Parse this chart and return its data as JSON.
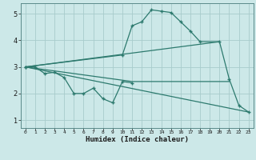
{
  "xlabel": "Humidex (Indice chaleur)",
  "bg_color": "#cce8e8",
  "grid_color": "#a8cccc",
  "line_color": "#2d7a6e",
  "xlim": [
    -0.5,
    23.5
  ],
  "ylim": [
    0.7,
    5.4
  ],
  "line1_x": [
    0,
    1,
    2,
    3,
    4,
    5,
    6,
    7,
    8,
    9,
    10,
    11
  ],
  "line1_y": [
    3.0,
    3.0,
    2.75,
    2.8,
    2.6,
    2.0,
    2.0,
    2.2,
    1.8,
    1.65,
    2.45,
    2.4
  ],
  "line2_x": [
    0,
    10,
    11,
    12,
    13,
    14,
    15,
    16,
    17,
    18,
    20,
    21,
    22,
    23
  ],
  "line2_y": [
    3.0,
    3.45,
    4.55,
    4.7,
    5.15,
    5.1,
    5.05,
    4.7,
    4.35,
    3.95,
    3.95,
    2.55,
    1.55,
    1.3
  ],
  "line3_x": [
    0,
    20
  ],
  "line3_y": [
    3.0,
    3.95
  ],
  "line4_x": [
    0,
    23
  ],
  "line4_y": [
    3.0,
    1.3
  ],
  "line5_x": [
    0,
    11,
    21
  ],
  "line5_y": [
    3.0,
    2.45,
    2.45
  ],
  "xticks": [
    0,
    1,
    2,
    3,
    4,
    5,
    6,
    7,
    8,
    9,
    10,
    11,
    12,
    13,
    14,
    15,
    16,
    17,
    18,
    19,
    20,
    21,
    22,
    23
  ],
  "yticks": [
    1,
    2,
    3,
    4,
    5
  ]
}
